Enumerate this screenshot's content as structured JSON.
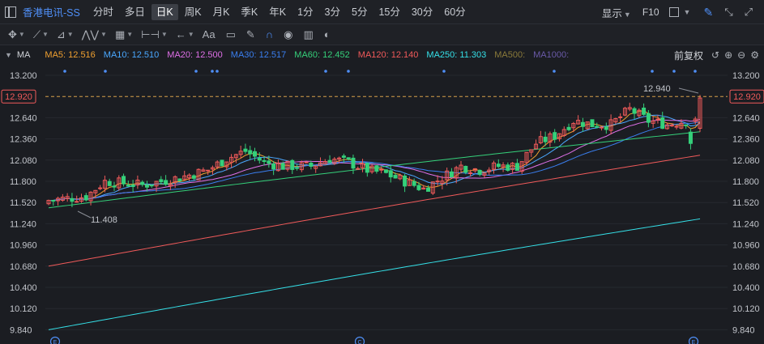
{
  "window": {
    "icon": "window-icon"
  },
  "stock": {
    "name": "香港电讯-SS"
  },
  "periods": [
    {
      "label": "分时",
      "active": false
    },
    {
      "label": "多日",
      "active": false
    },
    {
      "label": "日K",
      "active": true
    },
    {
      "label": "周K",
      "active": false
    },
    {
      "label": "月K",
      "active": false
    },
    {
      "label": "季K",
      "active": false
    },
    {
      "label": "年K",
      "active": false
    },
    {
      "label": "1分",
      "active": false
    },
    {
      "label": "3分",
      "active": false
    },
    {
      "label": "5分",
      "active": false
    },
    {
      "label": "15分",
      "active": false
    },
    {
      "label": "30分",
      "active": false
    },
    {
      "label": "60分",
      "active": false
    }
  ],
  "toolbar_right": {
    "display_label": "显示",
    "f10_label": "F10"
  },
  "drawing_tools": [
    {
      "name": "crosshair-tool",
      "glyph": "✥",
      "dropdown": true
    },
    {
      "name": "line-tool",
      "glyph": "⟋",
      "dropdown": true
    },
    {
      "name": "channel-tool",
      "glyph": "⊿",
      "dropdown": true
    },
    {
      "name": "wave-tool",
      "glyph": "⋀⋁",
      "dropdown": true
    },
    {
      "name": "fib-tool",
      "glyph": "▦",
      "dropdown": true
    },
    {
      "name": "range-tool",
      "glyph": "⊢⊣",
      "dropdown": true
    },
    {
      "name": "arrow-tool",
      "glyph": "←",
      "dropdown": true
    },
    {
      "name": "text-tool",
      "glyph": "Aa",
      "dropdown": false
    },
    {
      "name": "note-tool",
      "glyph": "▭",
      "dropdown": false
    },
    {
      "name": "eraser-tool",
      "glyph": "✎",
      "dropdown": false
    },
    {
      "name": "magnet-tool",
      "glyph": "∩",
      "dropdown": false
    },
    {
      "name": "eye-tool",
      "glyph": "◉",
      "dropdown": false
    },
    {
      "name": "trash-tool",
      "glyph": "▥",
      "dropdown": false
    },
    {
      "name": "lock-tool",
      "glyph": "◐",
      "dropdown": false
    }
  ],
  "legend": {
    "ma_label": "MA",
    "items": [
      {
        "label": "MA5: 12.516",
        "color": "#f0a030"
      },
      {
        "label": "MA10: 12.510",
        "color": "#4aa8ff"
      },
      {
        "label": "MA20: 12.500",
        "color": "#e070e8"
      },
      {
        "label": "MA30: 12.517",
        "color": "#3a7ff0"
      },
      {
        "label": "MA60: 12.452",
        "color": "#35d07a"
      },
      {
        "label": "MA120: 12.140",
        "color": "#f05a5a"
      },
      {
        "label": "MA250: 11.303",
        "color": "#35e0e8"
      },
      {
        "label": "MA500:",
        "color": "#8a7a3a"
      },
      {
        "label": "MA1000:",
        "color": "#6a5aa8"
      }
    ],
    "adjust_label": "前复权"
  },
  "chart_data": {
    "type": "candlestick",
    "y_ticks": [
      "13.200",
      "12.920",
      "12.640",
      "12.360",
      "12.080",
      "11.800",
      "11.520",
      "11.240",
      "10.960",
      "10.680",
      "10.400",
      "10.120",
      "9.840"
    ],
    "ylim": [
      9.7,
      13.28
    ],
    "current_price": "12.920",
    "high_annotation": "12.940",
    "low_annotation": "11.408",
    "event_markers": [
      "E",
      "C",
      "E"
    ],
    "colors": {
      "up": "#f05a5a",
      "down": "#35d07a",
      "price_line": "#d8a04a"
    }
  }
}
